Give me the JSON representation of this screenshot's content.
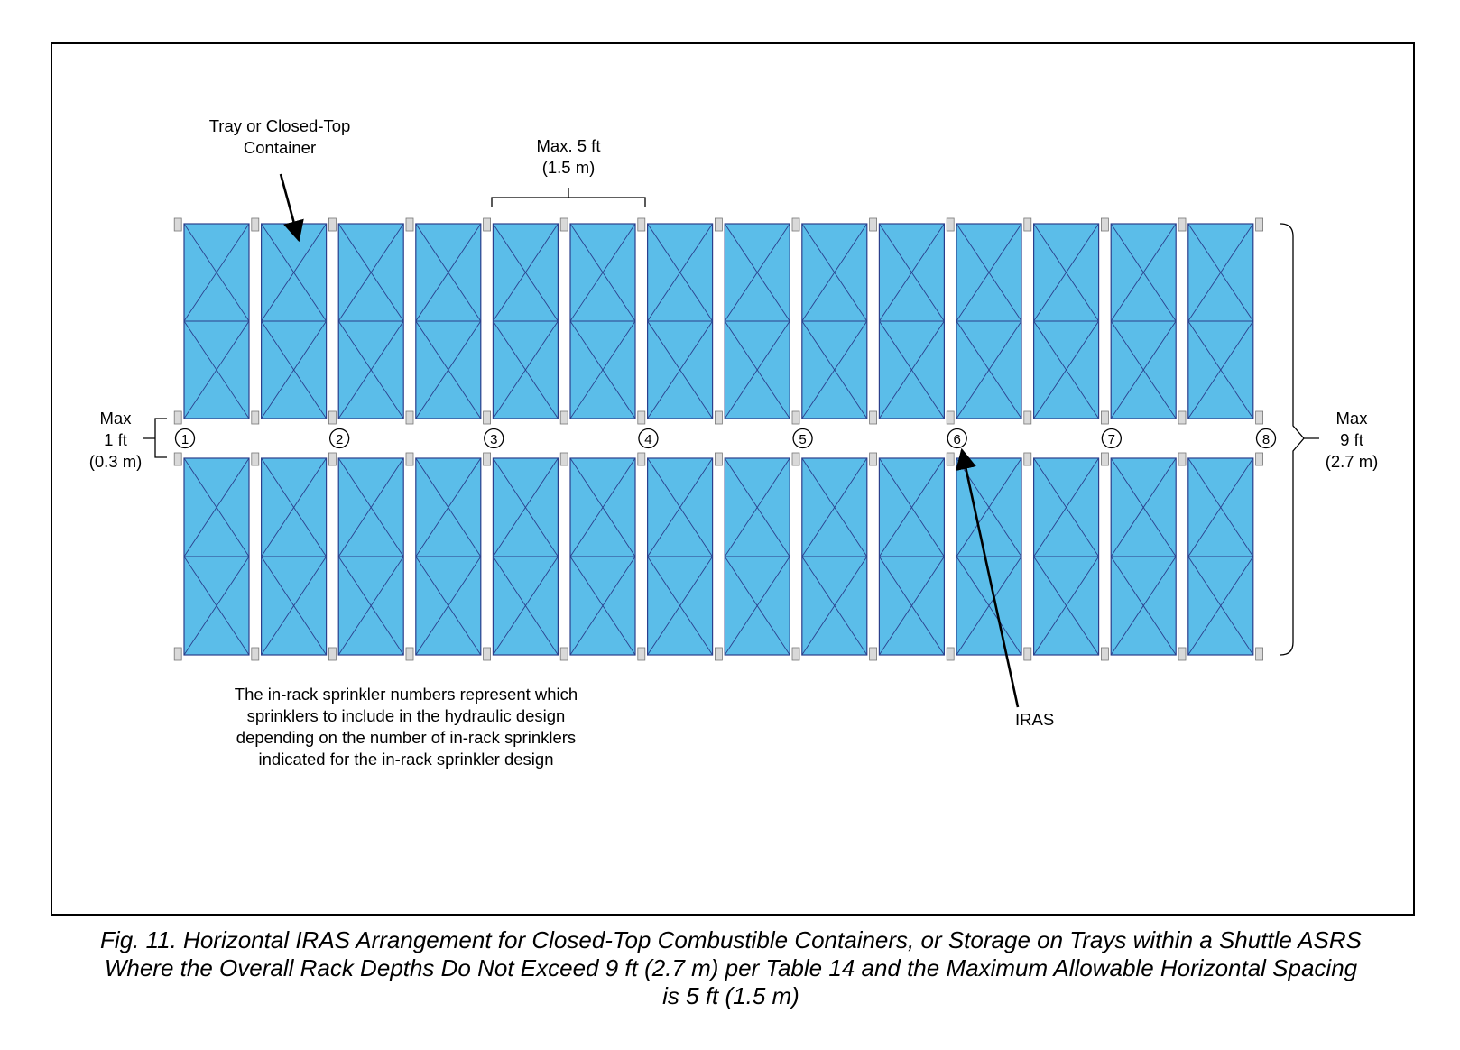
{
  "labels": {
    "tray_line1": "Tray or Closed-Top",
    "tray_line2": "Container",
    "max5_line1": "Max. 5 ft",
    "max5_line2": "(1.5 m)",
    "max1_line1": "Max",
    "max1_line2": "1 ft",
    "max1_line3": "(0.3 m)",
    "max9_line1": "Max",
    "max9_line2": "9 ft",
    "max9_line3": "(2.7 m)",
    "iras": "IRAS",
    "note_line1": "The in-rack sprinkler numbers represent which",
    "note_line2": "sprinklers to include in the hydraulic design",
    "note_line3": "depending on the number of in-rack sprinklers",
    "note_line4": "indicated for the in-rack sprinkler design"
  },
  "sprinkler_numbers": [
    "1",
    "2",
    "3",
    "4",
    "5",
    "6",
    "7",
    "8"
  ],
  "rack": {
    "containers_per_row": 14,
    "rows": 2
  },
  "colors": {
    "container_fill": "#5bbde9",
    "container_stroke": "#2b3f8c",
    "upright_fill": "#d9d9d9",
    "line": "#000000"
  },
  "caption": {
    "line1": "Fig. 11. Horizontal IRAS Arrangement for Closed-Top Combustible Containers, or Storage on Trays within a Shuttle ASRS",
    "line2": "Where the Overall Rack Depths Do Not Exceed 9 ft (2.7 m) per Table 14 and the Maximum Allowable Horizontal Spacing",
    "line3": "is 5 ft (1.5 m)"
  }
}
